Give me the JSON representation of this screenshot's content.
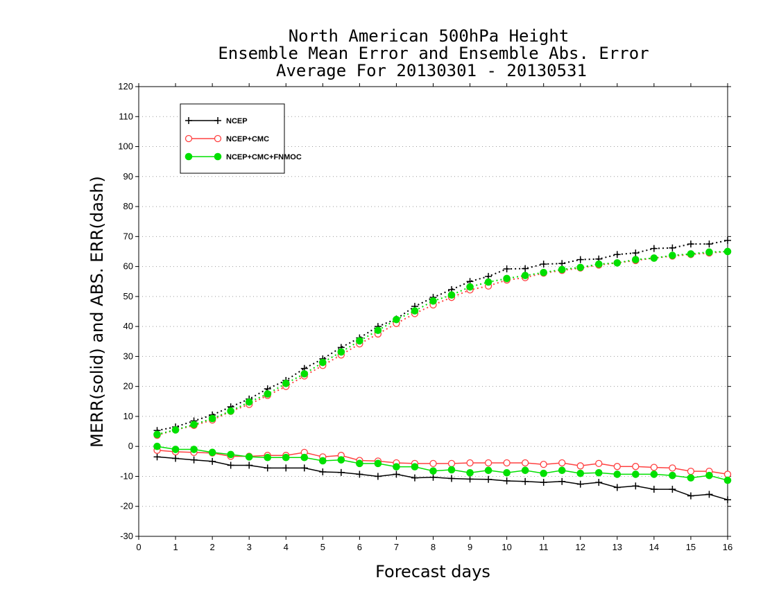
{
  "chart_data": {
    "type": "line",
    "title": [
      "North American 500hPa Height",
      "Ensemble Mean Error and Ensemble Abs. Error",
      "Average For 20130301 - 20130531"
    ],
    "xlabel": "Forecast days",
    "ylabel": "MERR(solid) and ABS. ERR(dash)",
    "xlim": [
      0,
      16
    ],
    "ylim": [
      -30,
      120
    ],
    "xticks": [
      0,
      1,
      2,
      3,
      4,
      5,
      6,
      7,
      8,
      9,
      10,
      11,
      12,
      13,
      14,
      15,
      16
    ],
    "yticks": [
      -30,
      -20,
      -10,
      0,
      10,
      20,
      30,
      40,
      50,
      60,
      70,
      80,
      90,
      100,
      110,
      120
    ],
    "grid": "horizontal dotted",
    "legend_position": "top-left",
    "x": [
      0.5,
      1,
      1.5,
      2,
      2.5,
      3,
      3.5,
      4,
      4.5,
      5,
      5.5,
      6,
      6.5,
      7,
      7.5,
      8,
      8.5,
      9,
      9.5,
      10,
      10.5,
      11,
      11.5,
      12,
      12.5,
      13,
      13.5,
      14,
      14.5,
      15,
      15.5,
      16
    ],
    "series": [
      {
        "name": "NCEP",
        "color": "#000000",
        "marker": "plus",
        "merr": [
          -3.5,
          -4,
          -4.5,
          -5,
          -6.3,
          -6.3,
          -7.2,
          -7.2,
          -7.2,
          -8.5,
          -8.7,
          -9.3,
          -10,
          -9.3,
          -10.5,
          -10.3,
          -10.7,
          -10.9,
          -11,
          -11.5,
          -11.7,
          -12,
          -11.7,
          -12.6,
          -12,
          -13.7,
          -13.2,
          -14.3,
          -14.3,
          -16.5,
          -16,
          -17.8
        ],
        "abs_err": [
          5.3,
          6.5,
          8.5,
          10.5,
          13.2,
          15.8,
          19.2,
          22,
          26,
          29.2,
          33,
          36.2,
          40,
          42.5,
          46.7,
          49.7,
          52.3,
          55,
          56.7,
          59.2,
          59.3,
          60.8,
          61,
          62.3,
          62.5,
          64,
          64.5,
          66,
          66.2,
          67.5,
          67.5,
          68.7
        ]
      },
      {
        "name": "NCEP+CMC",
        "color": "#ff4040",
        "marker": "open-circle",
        "merr": [
          -1.3,
          -1.8,
          -2,
          -2.2,
          -3.3,
          -3.3,
          -3,
          -3,
          -2,
          -3.5,
          -3,
          -4.7,
          -4.9,
          -5.5,
          -5.7,
          -5.7,
          -5.7,
          -5.5,
          -5.5,
          -5.5,
          -5.5,
          -6,
          -5.5,
          -6.5,
          -5.7,
          -6.7,
          -6.7,
          -7,
          -7.2,
          -8.3,
          -8.3,
          -9.3
        ]
      },
      {
        "name": "NCEP+CMC+FNMOC",
        "color": "#00e000",
        "marker": "filled-circle",
        "merr": [
          0,
          -1,
          -1,
          -2,
          -2.7,
          -3.5,
          -3.7,
          -3.7,
          -3.7,
          -4.8,
          -4.5,
          -5.7,
          -5.7,
          -6.8,
          -6.8,
          -8.2,
          -7.8,
          -8.8,
          -8,
          -8.8,
          -8,
          -9,
          -8,
          -9,
          -8.8,
          -9.3,
          -9.3,
          -9.3,
          -9.7,
          -10.5,
          -9.7,
          -11.3
        ],
        "abs_err": [
          4,
          5.5,
          7.3,
          9.3,
          11.8,
          14.8,
          17.5,
          21,
          24.2,
          28,
          31.5,
          35.2,
          38.7,
          42.3,
          45.2,
          48.5,
          50.5,
          53.2,
          54.8,
          56,
          57,
          58,
          59,
          59.7,
          60.8,
          61.2,
          62.3,
          62.8,
          63.7,
          64.2,
          64.8,
          65
        ]
      }
    ],
    "nmc_abs_err": [
      3.7,
      5.5,
      7,
      8.8,
      11.7,
      14,
      17,
      20,
      23.5,
      27,
      30.5,
      34.2,
      37.5,
      41,
      44.3,
      47.2,
      49.7,
      52.2,
      53.5,
      55.5,
      56.3,
      57.8,
      58.7,
      59.5,
      60.5,
      61.2,
      62,
      62.8,
      63.5,
      64,
      64.5,
      65
    ]
  }
}
